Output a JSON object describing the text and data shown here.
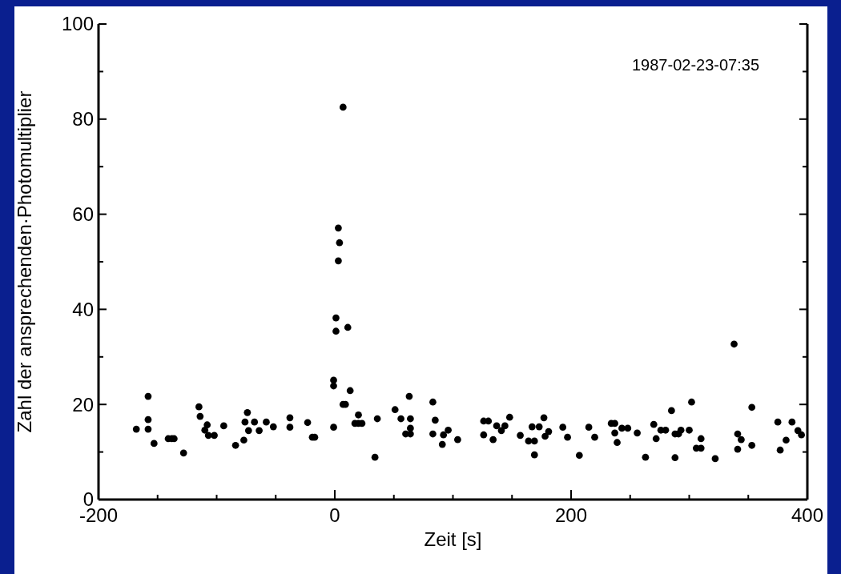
{
  "chart_data": {
    "type": "scatter",
    "xlabel": "Zeit [s]",
    "ylabel": "Zahl der ansprechenden·Photomultiplier",
    "annotations": [
      "1987-02-23-07:35"
    ],
    "xlim": [
      -200,
      400
    ],
    "ylim": [
      0,
      100
    ],
    "xticks": [
      -200,
      {
        "value": -150,
        "label": null
      },
      {
        "value": -100,
        "label": null
      },
      {
        "value": -50,
        "label": null
      },
      0,
      {
        "value": 50,
        "label": null
      },
      {
        "value": 100,
        "label": null
      },
      {
        "value": 150,
        "label": null
      },
      200,
      {
        "value": 250,
        "label": null
      },
      {
        "value": 300,
        "label": null
      },
      {
        "value": 350,
        "label": null
      },
      400
    ],
    "yticks": [
      0,
      {
        "value": 10,
        "label": null
      },
      20,
      {
        "value": 30,
        "label": null
      },
      40,
      {
        "value": 50,
        "label": null
      },
      60,
      {
        "value": 70,
        "label": null
      },
      80,
      {
        "value": 90,
        "label": null
      },
      100
    ],
    "grid": false,
    "marker": "circle",
    "series": [
      {
        "color": "#000000",
        "x": [
          -168,
          -158,
          -158,
          -158,
          -153,
          -141,
          -138,
          -136,
          -128,
          -115,
          -114,
          -108,
          -110,
          -107,
          -102,
          -94,
          -84,
          -77,
          -76,
          -74,
          -73,
          -68,
          -64,
          -58,
          -52,
          -38,
          -38,
          -23,
          -19,
          -17,
          -1,
          -1,
          -1,
          7,
          13,
          9,
          20,
          17,
          20,
          23,
          36,
          34,
          51,
          56,
          63,
          64,
          60,
          64,
          64,
          83,
          85,
          83,
          92,
          96,
          91,
          104,
          126,
          130,
          126,
          134,
          137,
          141,
          144,
          148,
          157,
          164,
          169,
          169,
          167,
          173,
          177,
          178,
          181,
          193,
          197,
          207,
          215,
          220,
          234,
          237,
          237,
          239,
          243,
          248,
          256,
          263,
          270,
          272,
          276,
          280,
          285,
          288,
          291,
          293,
          288,
          302,
          300,
          310,
          306,
          310,
          322,
          341,
          344,
          341,
          353,
          353,
          375,
          377,
          382,
          387,
          392,
          395,
          7,
          3,
          4,
          3,
          1,
          1,
          11,
          338
        ],
        "values": [
          14.8,
          21.7,
          16.8,
          14.8,
          11.8,
          12.8,
          12.8,
          12.8,
          9.8,
          19.5,
          17.5,
          15.7,
          14.6,
          13.5,
          13.5,
          15.5,
          11.4,
          12.5,
          16.3,
          18.3,
          14.5,
          16.3,
          14.5,
          16.3,
          15.3,
          17.2,
          15.2,
          16.2,
          13.1,
          13.1,
          25.1,
          23.9,
          15.2,
          20,
          22.9,
          20.0,
          17.8,
          16.0,
          16.0,
          16.0,
          17.0,
          8.9,
          18.9,
          17.0,
          21.7,
          17.0,
          13.8,
          13.8,
          15.0,
          20.5,
          16.7,
          13.8,
          13.6,
          14.6,
          11.6,
          12.6,
          16.5,
          16.5,
          13.6,
          12.6,
          15.5,
          14.5,
          15.5,
          17.3,
          13.5,
          12.3,
          12.3,
          9.4,
          15.3,
          15.3,
          17.2,
          13.3,
          14.3,
          15.2,
          13.1,
          9.3,
          15.2,
          13.1,
          16.0,
          16.0,
          14.0,
          12.0,
          15.0,
          15.0,
          14.0,
          8.9,
          15.8,
          12.8,
          14.6,
          14.6,
          18.7,
          13.8,
          13.8,
          14.6,
          8.8,
          20.5,
          14.6,
          12.8,
          10.8,
          10.8,
          8.6,
          13.8,
          12.6,
          10.6,
          19.4,
          11.4,
          16.3,
          10.4,
          12.5,
          16.3,
          14.5,
          13.6,
          82.5,
          57.1,
          54.0,
          50.2,
          38.2,
          35.4,
          36.2,
          32.7
        ]
      }
    ]
  }
}
